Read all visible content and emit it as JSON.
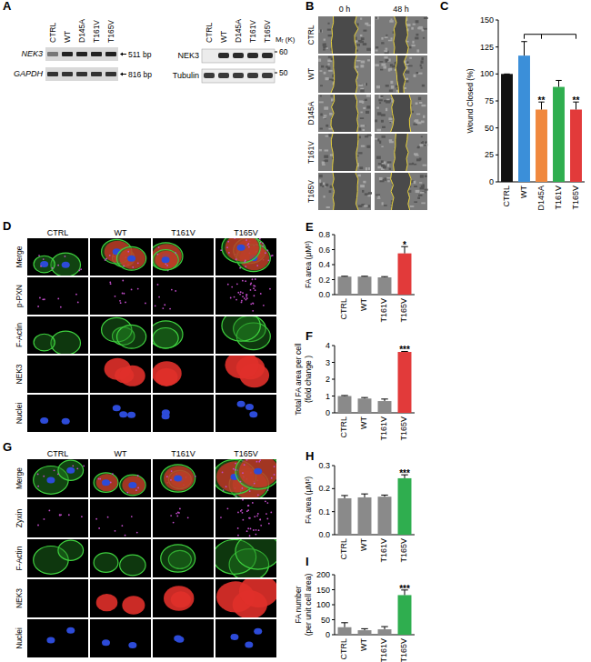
{
  "chart_data": [
    {
      "type": "bar",
      "y_label": "Wound Closed (%)",
      "categories": [
        "CTRL",
        "WT",
        "D145A",
        "T161V",
        "T165V"
      ],
      "values": [
        100,
        117,
        67,
        88,
        67
      ],
      "errors": [
        0,
        13,
        7,
        6,
        7
      ],
      "colors": [
        "#111111",
        "#3b8fd9",
        "#f0883e",
        "#2fae4f",
        "#e23a3a"
      ],
      "ylim": [
        0,
        150
      ],
      "yticks": [
        0,
        25,
        50,
        75,
        100,
        125,
        150
      ],
      "grid": false,
      "annotations": [
        {
          "text": "**",
          "category": "D145A",
          "versus": "WT"
        },
        {
          "text": "**",
          "category": "T165V",
          "versus": "WT"
        }
      ]
    },
    {
      "type": "bar",
      "y_label": "FA area (μM²)",
      "categories": [
        "CTRL",
        "WT",
        "T161V",
        "T165V"
      ],
      "values": [
        0.24,
        0.24,
        0.23,
        0.55
      ],
      "errors": [
        0.005,
        0.005,
        0.01,
        0.09
      ],
      "colors": [
        "#8a8a8a",
        "#8a8a8a",
        "#8a8a8a",
        "#e23a3a"
      ],
      "ylim": [
        0,
        0.8
      ],
      "yticks": [
        {
          "value": 0,
          "label": "0.0"
        },
        0.2,
        0.4,
        0.6,
        0.8
      ],
      "grid": false,
      "annotations": [
        {
          "text": "*",
          "category": "T165V"
        }
      ]
    },
    {
      "type": "bar",
      "y_label": [
        "Total FA area per cell",
        "(fold change )"
      ],
      "categories": [
        "CTRL",
        "WT",
        "T161V",
        "T165V"
      ],
      "values": [
        1.0,
        0.85,
        0.7,
        3.62
      ],
      "errors": [
        0.03,
        0.06,
        0.12,
        0.03
      ],
      "colors": [
        "#8a8a8a",
        "#8a8a8a",
        "#8a8a8a",
        "#e23a3a"
      ],
      "ylim": [
        0,
        4
      ],
      "yticks": [
        0,
        1,
        2,
        3,
        4
      ],
      "grid": false,
      "annotations": [
        {
          "text": "***",
          "category": "T165V"
        }
      ]
    },
    {
      "type": "bar",
      "y_label": "FA area (μM²)",
      "categories": [
        "CTRL",
        "WT",
        "T161V",
        "T165V"
      ],
      "values": [
        0.158,
        0.162,
        0.165,
        0.245
      ],
      "errors": [
        0.012,
        0.015,
        0.007,
        0.015
      ],
      "colors": [
        "#8a8a8a",
        "#8a8a8a",
        "#8a8a8a",
        "#2fae4f"
      ],
      "ylim": [
        0,
        0.3
      ],
      "yticks": [
        {
          "value": 0,
          "label": "0.0"
        },
        0.1,
        0.2,
        0.3
      ],
      "grid": false,
      "annotations": [
        {
          "text": "***",
          "category": "T165V"
        }
      ]
    },
    {
      "type": "bar",
      "y_label": [
        "FA number",
        "(per unit cell area)"
      ],
      "categories": [
        "CTRL",
        "WT",
        "T161V",
        "T165V"
      ],
      "values": [
        25,
        15,
        18,
        132
      ],
      "errors": [
        15,
        5,
        9,
        17
      ],
      "colors": [
        "#8a8a8a",
        "#8a8a8a",
        "#8a8a8a",
        "#2fae4f"
      ],
      "ylim": [
        0,
        200
      ],
      "yticks": [
        0,
        50,
        100,
        150,
        200
      ],
      "grid": false,
      "annotations": [
        {
          "text": "***",
          "category": "T165V"
        }
      ]
    }
  ],
  "figure": {
    "panel_labels": [
      "A",
      "B",
      "C",
      "D",
      "E",
      "F",
      "G",
      "H",
      "I"
    ],
    "gel": {
      "rows": [
        "NEK3",
        "GAPDH"
      ],
      "lanes": [
        "CTRL",
        "WT",
        "D145A",
        "T161V",
        "T165V"
      ],
      "sizes": [
        "511 bp",
        "816 bp"
      ]
    },
    "blot": {
      "rows": [
        "NEK3",
        "Tubulin"
      ],
      "lanes": [
        "CTRL",
        "WT",
        "D145A",
        "T161V",
        "T165V"
      ],
      "mass_label": "Mᵣ (K)",
      "markers": [
        60,
        50
      ]
    },
    "wound": {
      "times": [
        "0 h",
        "48 h"
      ],
      "rows": [
        "CTRL",
        "WT",
        "D145A",
        "T161V",
        "T165V"
      ]
    },
    "if_d": {
      "rows": [
        "Merge",
        "p-PXN",
        "F-Actin",
        "NEK3",
        "Nuclei"
      ],
      "columns": [
        "CTRL",
        "WT",
        "T161V",
        "T165V"
      ]
    },
    "if_g": {
      "rows": [
        "Merge",
        "Zyxin",
        "F-Actin",
        "NEK3",
        "Nuclei"
      ],
      "columns": [
        "CTRL",
        "WT",
        "T161V",
        "T165V"
      ]
    }
  }
}
